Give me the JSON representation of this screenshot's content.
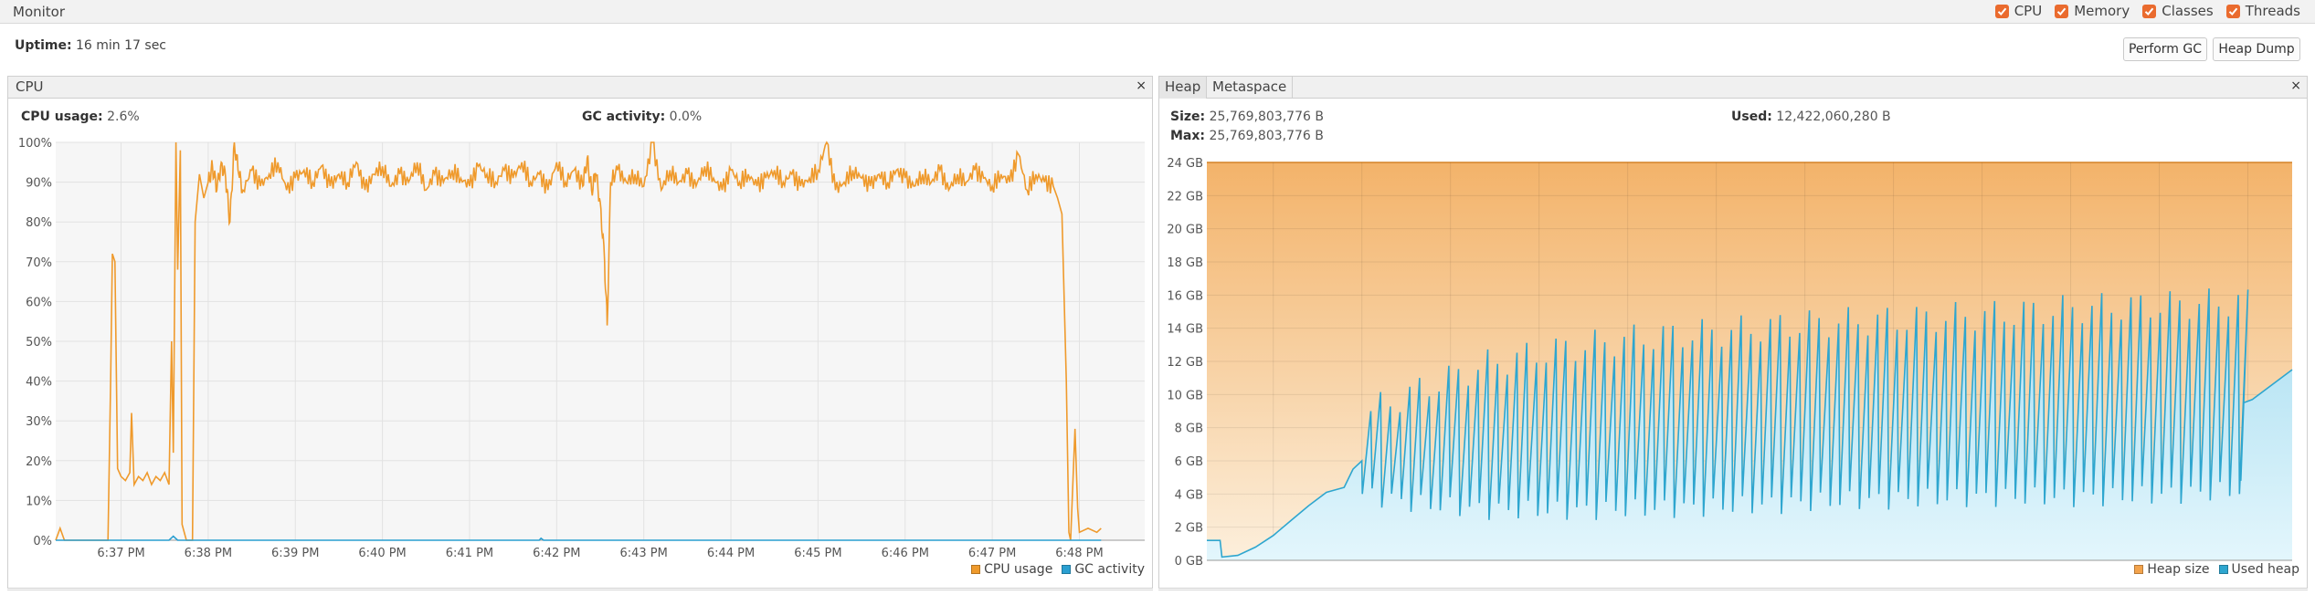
{
  "header": {
    "title": "Monitor",
    "toggles": [
      {
        "label": "CPU",
        "checked": true
      },
      {
        "label": "Memory",
        "checked": true
      },
      {
        "label": "Classes",
        "checked": true
      },
      {
        "label": "Threads",
        "checked": true
      }
    ]
  },
  "uptime": {
    "label": "Uptime:",
    "value": "16 min 17 sec"
  },
  "buttons": {
    "perform_gc": "Perform GC",
    "heap_dump": "Heap Dump"
  },
  "cpu_panel": {
    "tab": "CPU",
    "close": "×",
    "cpu_usage_label": "CPU usage:",
    "cpu_usage_value": "2.6%",
    "gc_label": "GC activity:",
    "gc_value": "0.0%"
  },
  "heap_panel": {
    "tabs": [
      "Heap",
      "Metaspace"
    ],
    "close": "×",
    "size_label": "Size:",
    "size_value": "25,769,803,776 B",
    "max_label": "Max:",
    "max_value": "25,769,803,776 B",
    "used_label": "Used:",
    "used_value": "12,422,060,280 B"
  },
  "colors": {
    "cpu_line": "#ef9a2c",
    "gc_line": "#2a9fd1",
    "heap_size_fill": "#f3b36a",
    "used_heap_line": "#2ea6cf",
    "checkbox": "#ea6b2e"
  },
  "chart_data": [
    {
      "type": "line",
      "y_ticks": [
        "0%",
        "10%",
        "20%",
        "30%",
        "40%",
        "50%",
        "60%",
        "70%",
        "80%",
        "90%",
        "100%"
      ],
      "x_ticks": [
        "6:37 PM",
        "6:38 PM",
        "6:39 PM",
        "6:40 PM",
        "6:41 PM",
        "6:42 PM",
        "6:43 PM",
        "6:44 PM",
        "6:45 PM",
        "6:46 PM",
        "6:47 PM",
        "6:48 PM"
      ],
      "ylim": [
        0,
        100
      ],
      "xlim_minutes": [
        36.25,
        48.75
      ],
      "grid": true,
      "legend": "bottom-right",
      "series": [
        {
          "name": "CPU usage",
          "points": [
            [
              36.25,
              0
            ],
            [
              36.3,
              3
            ],
            [
              36.35,
              0
            ],
            [
              36.85,
              0
            ],
            [
              36.88,
              40
            ],
            [
              36.9,
              72
            ],
            [
              36.93,
              70
            ],
            [
              36.96,
              18
            ],
            [
              37.0,
              16
            ],
            [
              37.05,
              15
            ],
            [
              37.1,
              17
            ],
            [
              37.12,
              32
            ],
            [
              37.15,
              14
            ],
            [
              37.2,
              16
            ],
            [
              37.25,
              15
            ],
            [
              37.3,
              17
            ],
            [
              37.35,
              14
            ],
            [
              37.4,
              16
            ],
            [
              37.45,
              15
            ],
            [
              37.5,
              17
            ],
            [
              37.55,
              14
            ],
            [
              37.58,
              50
            ],
            [
              37.6,
              22
            ],
            [
              37.63,
              100
            ],
            [
              37.65,
              68
            ],
            [
              37.68,
              98
            ],
            [
              37.7,
              4
            ],
            [
              37.75,
              0
            ],
            [
              37.82,
              0
            ],
            [
              37.85,
              80
            ],
            [
              37.9,
              92
            ],
            [
              37.95,
              86
            ],
            [
              38.0,
              90
            ],
            [
              38.05,
              94
            ],
            [
              38.1,
              88
            ],
            [
              38.15,
              95
            ],
            [
              38.2,
              91
            ],
            [
              38.25,
              80
            ],
            [
              38.3,
              100
            ],
            [
              38.35,
              92
            ],
            [
              38.4,
              88
            ],
            [
              38.5,
              93
            ],
            [
              38.6,
              89
            ],
            [
              38.7,
              92
            ],
            [
              38.8,
              95
            ],
            [
              38.9,
              88
            ],
            [
              39.0,
              91
            ],
            [
              39.1,
              93
            ],
            [
              39.2,
              90
            ],
            [
              39.3,
              94
            ],
            [
              39.4,
              89
            ],
            [
              39.5,
              92
            ],
            [
              39.6,
              90
            ],
            [
              39.7,
              95
            ],
            [
              39.8,
              88
            ],
            [
              39.9,
              92
            ],
            [
              40.0,
              94
            ],
            [
              40.1,
              89
            ],
            [
              40.2,
              92
            ],
            [
              40.3,
              90
            ],
            [
              40.4,
              95
            ],
            [
              40.5,
              88
            ],
            [
              40.6,
              92
            ],
            [
              40.7,
              90
            ],
            [
              40.8,
              93
            ],
            [
              40.9,
              91
            ],
            [
              41.0,
              89
            ],
            [
              41.1,
              94
            ],
            [
              41.2,
              92
            ],
            [
              41.3,
              90
            ],
            [
              41.4,
              93
            ],
            [
              41.5,
              91
            ],
            [
              41.6,
              95
            ],
            [
              41.7,
              90
            ],
            [
              41.8,
              92
            ],
            [
              41.9,
              88
            ],
            [
              42.0,
              95
            ],
            [
              42.1,
              90
            ],
            [
              42.2,
              93
            ],
            [
              42.3,
              89
            ],
            [
              42.35,
              96
            ],
            [
              42.4,
              88
            ],
            [
              42.45,
              92
            ],
            [
              42.5,
              85
            ],
            [
              42.55,
              70
            ],
            [
              42.58,
              54
            ],
            [
              42.62,
              90
            ],
            [
              42.7,
              93
            ],
            [
              42.8,
              90
            ],
            [
              42.9,
              92
            ],
            [
              43.0,
              89
            ],
            [
              43.1,
              100
            ],
            [
              43.2,
              88
            ],
            [
              43.3,
              93
            ],
            [
              43.4,
              90
            ],
            [
              43.5,
              92
            ],
            [
              43.6,
              89
            ],
            [
              43.7,
              94
            ],
            [
              43.8,
              91
            ],
            [
              43.9,
              88
            ],
            [
              44.0,
              93
            ],
            [
              44.1,
              90
            ],
            [
              44.2,
              92
            ],
            [
              44.3,
              89
            ],
            [
              44.4,
              91
            ],
            [
              44.5,
              93
            ],
            [
              44.6,
              90
            ],
            [
              44.7,
              92
            ],
            [
              44.8,
              89
            ],
            [
              44.9,
              91
            ],
            [
              45.0,
              93
            ],
            [
              45.1,
              100
            ],
            [
              45.2,
              88
            ],
            [
              45.3,
              90
            ],
            [
              45.4,
              93
            ],
            [
              45.5,
              91
            ],
            [
              45.6,
              89
            ],
            [
              45.7,
              92
            ],
            [
              45.8,
              90
            ],
            [
              45.9,
              93
            ],
            [
              46.0,
              91
            ],
            [
              46.1,
              89
            ],
            [
              46.2,
              92
            ],
            [
              46.3,
              90
            ],
            [
              46.4,
              93
            ],
            [
              46.5,
              88
            ],
            [
              46.6,
              92
            ],
            [
              46.7,
              90
            ],
            [
              46.8,
              93
            ],
            [
              46.9,
              91
            ],
            [
              47.0,
              89
            ],
            [
              47.1,
              92
            ],
            [
              47.2,
              90
            ],
            [
              47.3,
              97
            ],
            [
              47.4,
              88
            ],
            [
              47.5,
              92
            ],
            [
              47.6,
              90
            ],
            [
              47.7,
              89
            ],
            [
              47.75,
              86
            ],
            [
              47.8,
              82
            ],
            [
              47.85,
              40
            ],
            [
              47.88,
              2
            ],
            [
              47.9,
              0
            ],
            [
              47.95,
              28
            ],
            [
              47.98,
              8
            ],
            [
              48.0,
              2
            ],
            [
              48.1,
              3
            ],
            [
              48.2,
              2
            ],
            [
              48.25,
              3
            ]
          ]
        },
        {
          "name": "GC activity",
          "points": [
            [
              36.25,
              0
            ],
            [
              37.55,
              0
            ],
            [
              37.6,
              1
            ],
            [
              37.65,
              0
            ],
            [
              41.8,
              0
            ],
            [
              41.82,
              0.5
            ],
            [
              41.85,
              0
            ],
            [
              48.25,
              0
            ]
          ]
        }
      ]
    },
    {
      "type": "area",
      "y_ticks": [
        "0 GB",
        "2 GB",
        "4 GB",
        "6 GB",
        "8 GB",
        "10 GB",
        "12 GB",
        "14 GB",
        "16 GB",
        "18 GB",
        "20 GB",
        "22 GB",
        "24 GB"
      ],
      "x_ticks": [
        "6:37 PM",
        "6:38 PM",
        "6:39 PM",
        "6:40 PM",
        "6:41 PM",
        "6:42 PM",
        "6:43 PM",
        "6:44 PM",
        "6:45 PM",
        "6:46 PM",
        "6:47 PM",
        "6:48 PM"
      ],
      "ylim_gb": [
        0,
        24
      ],
      "xlim_minutes": [
        36.25,
        48.5
      ],
      "grid": true,
      "legend": "bottom-right",
      "series": [
        {
          "name": "Heap size",
          "constant_gb": 24
        },
        {
          "name": "Used heap",
          "sawtooth": {
            "lead_in": [
              [
                36.25,
                1.2
              ],
              [
                36.4,
                1.2
              ],
              [
                36.42,
                0.2
              ],
              [
                36.6,
                0.3
              ],
              [
                36.8,
                0.8
              ],
              [
                37.0,
                1.5
              ],
              [
                37.2,
                2.4
              ],
              [
                37.4,
                3.3
              ],
              [
                37.6,
                4.1
              ],
              [
                37.8,
                4.4
              ],
              [
                37.9,
                5.5
              ],
              [
                38.0,
                6.0
              ]
            ],
            "start_min": 38.0,
            "end_min": 48.0,
            "period_min": 0.11,
            "lows": [
              [
                38.0,
                4.0
              ],
              [
                38.6,
                3.4
              ],
              [
                39.5,
                3.0
              ],
              [
                40.5,
                3.0
              ],
              [
                42.0,
                3.2
              ],
              [
                43.5,
                3.6
              ],
              [
                45.0,
                3.8
              ],
              [
                46.5,
                3.8
              ],
              [
                47.9,
                4.2
              ]
            ],
            "highs": [
              [
                38.0,
                9.0
              ],
              [
                38.6,
                10.4
              ],
              [
                39.3,
                11.8
              ],
              [
                40.0,
                12.6
              ],
              [
                41.0,
                13.4
              ],
              [
                42.0,
                13.8
              ],
              [
                43.0,
                14.3
              ],
              [
                44.0,
                14.5
              ],
              [
                45.0,
                14.8
              ],
              [
                46.0,
                15.2
              ],
              [
                47.0,
                15.4
              ],
              [
                47.9,
                15.6
              ]
            ],
            "tail": [
              [
                47.92,
                4.8
              ],
              [
                47.95,
                9.5
              ],
              [
                48.05,
                9.7
              ],
              [
                48.5,
                11.5
              ]
            ]
          }
        }
      ]
    }
  ]
}
